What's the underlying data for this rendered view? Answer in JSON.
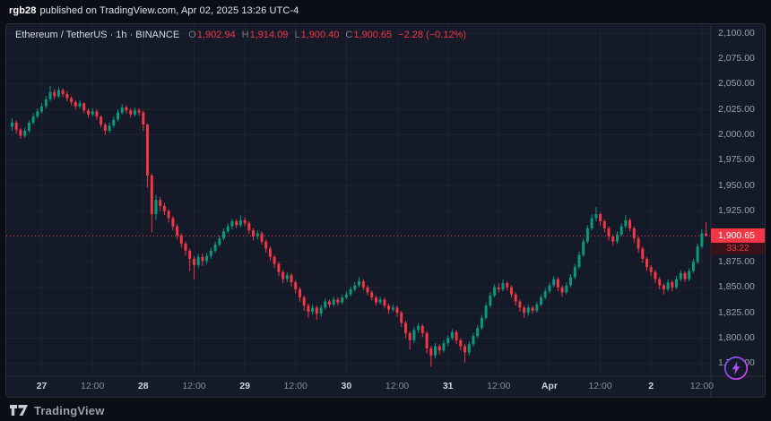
{
  "attribution": {
    "user": "rgb28",
    "text": "published on TradingView.com, Apr 02, 2025 13:26 UTC-4"
  },
  "header": {
    "title": "Ethereum / TetherUS · 1h · BINANCE",
    "ohlc": [
      {
        "k": "O",
        "v": "1,902.94"
      },
      {
        "k": "H",
        "v": "1,914.09"
      },
      {
        "k": "L",
        "v": "1,900.40"
      },
      {
        "k": "C",
        "v": "1,900.65"
      }
    ],
    "change": "−2.28 (−0.12%)"
  },
  "price_label": {
    "value": "1,900.65",
    "countdown": "33:22"
  },
  "footer": {
    "brand": "TradingView"
  },
  "colors": {
    "up": "#089981",
    "down": "#f23645",
    "grid": "#1d2331",
    "separator": "#2a2e39",
    "axis_text": "#9aa0ab",
    "panel_bg": "#141a27",
    "badge_bg": "#f23645"
  },
  "chart_data": {
    "type": "candlestick",
    "title": "Ethereum / TetherUS",
    "interval": "1h",
    "exchange": "BINANCE",
    "last_price": 1900.65,
    "up_color": "#089981",
    "down_color": "#f23645",
    "price_axis_labels": [
      "2,100.00",
      "2,075.00",
      "2,050.00",
      "2,025.00",
      "2,000.00",
      "1,975.00",
      "1,950.00",
      "1,925.00",
      "1,900.00",
      "1,875.00",
      "1,850.00",
      "1,825.00",
      "1,800.00",
      "1,775.00"
    ],
    "price_axis": {
      "max": 2100,
      "min": 1775,
      "step": 25
    },
    "time_ticks": [
      {
        "label": "27",
        "i": 7,
        "major": true
      },
      {
        "label": "12:00",
        "i": 19,
        "major": false
      },
      {
        "label": "28",
        "i": 31,
        "major": true
      },
      {
        "label": "12:00",
        "i": 43,
        "major": false
      },
      {
        "label": "29",
        "i": 55,
        "major": true
      },
      {
        "label": "12:00",
        "i": 67,
        "major": false
      },
      {
        "label": "30",
        "i": 79,
        "major": true
      },
      {
        "label": "12:00",
        "i": 91,
        "major": false
      },
      {
        "label": "31",
        "i": 103,
        "major": true
      },
      {
        "label": "12:00",
        "i": 115,
        "major": false
      },
      {
        "label": "Apr",
        "i": 127,
        "major": true
      },
      {
        "label": "12:00",
        "i": 139,
        "major": false
      },
      {
        "label": "2",
        "i": 151,
        "major": true
      },
      {
        "label": "12:00",
        "i": 163,
        "major": false
      }
    ],
    "candles": [
      [
        2008,
        2016,
        2004,
        2012
      ],
      [
        2012,
        2014,
        2001,
        2005
      ],
      [
        2005,
        2007,
        1996,
        1999
      ],
      [
        1999,
        2007,
        1997,
        2004
      ],
      [
        2004,
        2014,
        2002,
        2012
      ],
      [
        2012,
        2021,
        2010,
        2018
      ],
      [
        2018,
        2026,
        2016,
        2023
      ],
      [
        2023,
        2031,
        2021,
        2028
      ],
      [
        2028,
        2038,
        2026,
        2035
      ],
      [
        2035,
        2048,
        2033,
        2042
      ],
      [
        2042,
        2045,
        2035,
        2038
      ],
      [
        2038,
        2047,
        2036,
        2044
      ],
      [
        2044,
        2046,
        2037,
        2040
      ],
      [
        2040,
        2043,
        2033,
        2036
      ],
      [
        2036,
        2038,
        2029,
        2032
      ],
      [
        2032,
        2034,
        2025,
        2028
      ],
      [
        2028,
        2034,
        2026,
        2031
      ],
      [
        2031,
        2032,
        2021,
        2024
      ],
      [
        2024,
        2026,
        2017,
        2020
      ],
      [
        2020,
        2026,
        2018,
        2023
      ],
      [
        2023,
        2025,
        2015,
        2018
      ],
      [
        2018,
        2019,
        2007,
        2010
      ],
      [
        2010,
        2012,
        2000,
        2004
      ],
      [
        2004,
        2012,
        2002,
        2009
      ],
      [
        2009,
        2018,
        2007,
        2015
      ],
      [
        2015,
        2025,
        2013,
        2022
      ],
      [
        2022,
        2030,
        2020,
        2027
      ],
      [
        2027,
        2029,
        2021,
        2024
      ],
      [
        2024,
        2026,
        2017,
        2020
      ],
      [
        2020,
        2027,
        2018,
        2024
      ],
      [
        2024,
        2026,
        2019,
        2022
      ],
      [
        2022,
        2024,
        2004,
        2010
      ],
      [
        2010,
        2011,
        1948,
        1960
      ],
      [
        1960,
        1962,
        1904,
        1922
      ],
      [
        1922,
        1941,
        1916,
        1936
      ],
      [
        1936,
        1939,
        1925,
        1930
      ],
      [
        1930,
        1933,
        1921,
        1925
      ],
      [
        1925,
        1927,
        1914,
        1918
      ],
      [
        1918,
        1920,
        1906,
        1910
      ],
      [
        1910,
        1912,
        1897,
        1901
      ],
      [
        1901,
        1903,
        1889,
        1893
      ],
      [
        1893,
        1895,
        1881,
        1886
      ],
      [
        1886,
        1888,
        1866,
        1878
      ],
      [
        1878,
        1881,
        1858,
        1872
      ],
      [
        1872,
        1883,
        1869,
        1880
      ],
      [
        1880,
        1883,
        1871,
        1876
      ],
      [
        1876,
        1884,
        1873,
        1881
      ],
      [
        1881,
        1889,
        1878,
        1886
      ],
      [
        1886,
        1895,
        1884,
        1892
      ],
      [
        1892,
        1901,
        1890,
        1898
      ],
      [
        1898,
        1908,
        1896,
        1905
      ],
      [
        1905,
        1913,
        1903,
        1910
      ],
      [
        1910,
        1918,
        1907,
        1915
      ],
      [
        1915,
        1917,
        1908,
        1911
      ],
      [
        1911,
        1921,
        1909,
        1916
      ],
      [
        1916,
        1919,
        1910,
        1913
      ],
      [
        1913,
        1915,
        1903,
        1906
      ],
      [
        1906,
        1908,
        1896,
        1900
      ],
      [
        1900,
        1906,
        1897,
        1903
      ],
      [
        1903,
        1905,
        1892,
        1895
      ],
      [
        1895,
        1897,
        1884,
        1888
      ],
      [
        1888,
        1890,
        1876,
        1880
      ],
      [
        1880,
        1882,
        1869,
        1873
      ],
      [
        1873,
        1875,
        1861,
        1865
      ],
      [
        1865,
        1867,
        1854,
        1858
      ],
      [
        1858,
        1865,
        1855,
        1862
      ],
      [
        1862,
        1864,
        1851,
        1855
      ],
      [
        1855,
        1857,
        1844,
        1848
      ],
      [
        1848,
        1850,
        1836,
        1840
      ],
      [
        1840,
        1842,
        1827,
        1832
      ],
      [
        1832,
        1834,
        1820,
        1826
      ],
      [
        1826,
        1833,
        1823,
        1830
      ],
      [
        1830,
        1832,
        1818,
        1824
      ],
      [
        1824,
        1833,
        1821,
        1830
      ],
      [
        1830,
        1839,
        1828,
        1836
      ],
      [
        1836,
        1838,
        1830,
        1833
      ],
      [
        1833,
        1841,
        1831,
        1838
      ],
      [
        1838,
        1840,
        1832,
        1835
      ],
      [
        1835,
        1843,
        1833,
        1840
      ],
      [
        1840,
        1846,
        1838,
        1843
      ],
      [
        1843,
        1851,
        1841,
        1848
      ],
      [
        1848,
        1855,
        1846,
        1852
      ],
      [
        1852,
        1860,
        1850,
        1856
      ],
      [
        1856,
        1858,
        1847,
        1850
      ],
      [
        1850,
        1852,
        1842,
        1845
      ],
      [
        1845,
        1847,
        1837,
        1840
      ],
      [
        1840,
        1842,
        1832,
        1835
      ],
      [
        1835,
        1841,
        1833,
        1838
      ],
      [
        1838,
        1840,
        1829,
        1832
      ],
      [
        1832,
        1834,
        1824,
        1828
      ],
      [
        1828,
        1833,
        1826,
        1830
      ],
      [
        1830,
        1832,
        1821,
        1825
      ],
      [
        1825,
        1827,
        1811,
        1815
      ],
      [
        1815,
        1817,
        1800,
        1805
      ],
      [
        1805,
        1807,
        1789,
        1798
      ],
      [
        1798,
        1811,
        1795,
        1808
      ],
      [
        1808,
        1815,
        1805,
        1812
      ],
      [
        1812,
        1814,
        1801,
        1805
      ],
      [
        1805,
        1807,
        1785,
        1790
      ],
      [
        1790,
        1792,
        1772,
        1783
      ],
      [
        1783,
        1795,
        1780,
        1792
      ],
      [
        1792,
        1794,
        1784,
        1788
      ],
      [
        1788,
        1798,
        1786,
        1795
      ],
      [
        1795,
        1803,
        1792,
        1800
      ],
      [
        1800,
        1809,
        1798,
        1806
      ],
      [
        1806,
        1808,
        1794,
        1798
      ],
      [
        1798,
        1800,
        1788,
        1792
      ],
      [
        1792,
        1794,
        1776,
        1786
      ],
      [
        1786,
        1797,
        1783,
        1794
      ],
      [
        1794,
        1805,
        1792,
        1802
      ],
      [
        1802,
        1813,
        1800,
        1810
      ],
      [
        1810,
        1823,
        1808,
        1820
      ],
      [
        1820,
        1835,
        1818,
        1832
      ],
      [
        1832,
        1845,
        1830,
        1842
      ],
      [
        1842,
        1853,
        1840,
        1850
      ],
      [
        1850,
        1854,
        1845,
        1848
      ],
      [
        1848,
        1858,
        1846,
        1854
      ],
      [
        1854,
        1856,
        1847,
        1850
      ],
      [
        1850,
        1852,
        1840,
        1843
      ],
      [
        1843,
        1845,
        1832,
        1836
      ],
      [
        1836,
        1838,
        1826,
        1830
      ],
      [
        1830,
        1832,
        1820,
        1825
      ],
      [
        1825,
        1833,
        1822,
        1830
      ],
      [
        1830,
        1832,
        1824,
        1827
      ],
      [
        1827,
        1836,
        1825,
        1833
      ],
      [
        1833,
        1843,
        1831,
        1840
      ],
      [
        1840,
        1849,
        1838,
        1846
      ],
      [
        1846,
        1855,
        1844,
        1852
      ],
      [
        1852,
        1861,
        1850,
        1858
      ],
      [
        1858,
        1860,
        1846,
        1850
      ],
      [
        1850,
        1852,
        1841,
        1845
      ],
      [
        1845,
        1855,
        1843,
        1852
      ],
      [
        1852,
        1863,
        1850,
        1860
      ],
      [
        1860,
        1873,
        1858,
        1870
      ],
      [
        1870,
        1885,
        1868,
        1882
      ],
      [
        1882,
        1898,
        1880,
        1895
      ],
      [
        1895,
        1911,
        1893,
        1908
      ],
      [
        1908,
        1922,
        1906,
        1918
      ],
      [
        1918,
        1929,
        1915,
        1922
      ],
      [
        1922,
        1924,
        1911,
        1915
      ],
      [
        1915,
        1917,
        1904,
        1908
      ],
      [
        1908,
        1910,
        1896,
        1900
      ],
      [
        1900,
        1902,
        1891,
        1895
      ],
      [
        1895,
        1905,
        1893,
        1902
      ],
      [
        1902,
        1913,
        1900,
        1910
      ],
      [
        1910,
        1921,
        1908,
        1916
      ],
      [
        1916,
        1918,
        1905,
        1908
      ],
      [
        1908,
        1910,
        1894,
        1898
      ],
      [
        1898,
        1900,
        1884,
        1888
      ],
      [
        1888,
        1890,
        1874,
        1878
      ],
      [
        1878,
        1880,
        1866,
        1870
      ],
      [
        1870,
        1872,
        1861,
        1865
      ],
      [
        1865,
        1867,
        1854,
        1858
      ],
      [
        1858,
        1860,
        1848,
        1852
      ],
      [
        1852,
        1854,
        1843,
        1848
      ],
      [
        1848,
        1858,
        1846,
        1855
      ],
      [
        1855,
        1857,
        1846,
        1850
      ],
      [
        1850,
        1861,
        1848,
        1858
      ],
      [
        1858,
        1867,
        1856,
        1864
      ],
      [
        1864,
        1866,
        1855,
        1858
      ],
      [
        1858,
        1869,
        1856,
        1866
      ],
      [
        1866,
        1878,
        1864,
        1875
      ],
      [
        1875,
        1893,
        1873,
        1890
      ],
      [
        1890,
        1907,
        1888,
        1903
      ],
      [
        1902.94,
        1914.09,
        1900.4,
        1900.65
      ]
    ]
  }
}
